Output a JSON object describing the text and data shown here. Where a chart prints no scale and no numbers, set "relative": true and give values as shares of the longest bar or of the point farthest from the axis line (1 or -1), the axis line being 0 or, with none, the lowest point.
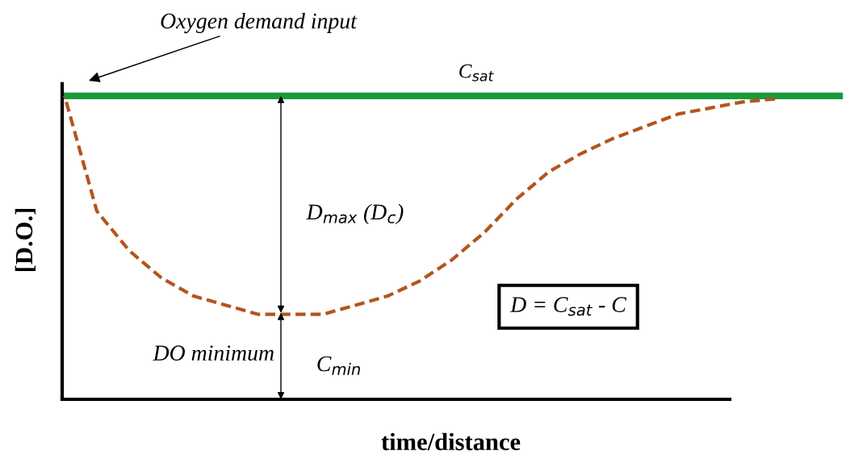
{
  "chart_data": {
    "type": "line",
    "relative": true,
    "xlabel": "time/distance",
    "ylabel": "[D.O.]",
    "categories": [
      null,
      null,
      null,
      null,
      null,
      null,
      null,
      null,
      null,
      null,
      null,
      null,
      null,
      null,
      null,
      null,
      null,
      null,
      null,
      null,
      null,
      null,
      null,
      null,
      null
    ],
    "series": [
      {
        "name": "C$_{sat}$",
        "color": "#1a9a3a",
        "line_style": "solid",
        "values": [
          1,
          1,
          1,
          1,
          1,
          1,
          1,
          1,
          1,
          1,
          1,
          1,
          1,
          1,
          1,
          1,
          1,
          1,
          1,
          1,
          1,
          1,
          1,
          1,
          1
        ]
      },
      {
        "color": "#b5541c",
        "line_style": "dashed",
        "values": [
          1.0,
          0.62,
          0.49,
          0.4,
          0.34,
          0.31,
          0.28,
          0.28,
          0.28,
          0.31,
          0.34,
          0.39,
          0.46,
          0.55,
          0.66,
          0.75,
          0.81,
          0.86,
          0.9,
          0.94,
          0.96,
          0.98,
          0.99,
          null,
          null
        ]
      }
    ],
    "annotations": [
      "Oxygen demand input",
      "D$_{max}$ (D$_{c}$)",
      "DO minimum",
      "C$_{min}$",
      "D = C$_{sat}$ - C"
    ],
    "grid": false,
    "legend": false,
    "marker": "none",
    "tick_labels": false
  }
}
